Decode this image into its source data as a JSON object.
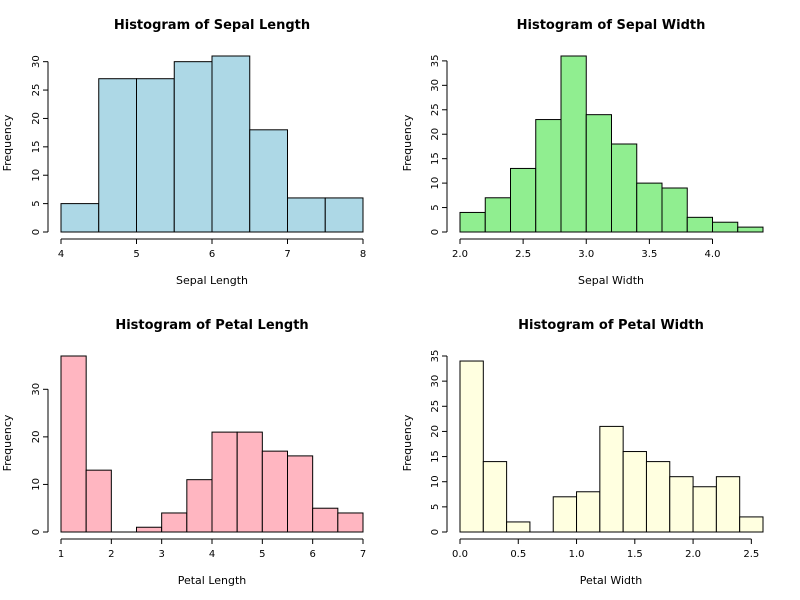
{
  "chart_data": [
    {
      "type": "bar",
      "title": "Histogram of Sepal Length",
      "xlabel": "Sepal Length",
      "ylabel": "Frequency",
      "color": "#add8e6",
      "bin_edges": [
        4.0,
        4.5,
        5.0,
        5.5,
        6.0,
        6.5,
        7.0,
        7.5,
        8.0
      ],
      "values": [
        5,
        27,
        27,
        30,
        31,
        18,
        6,
        6
      ],
      "xlim": [
        4,
        8
      ],
      "ylim": [
        0,
        31
      ],
      "xticks": [
        "4",
        "5",
        "6",
        "7",
        "8"
      ],
      "yticks": [
        "0",
        "5",
        "10",
        "15",
        "20",
        "25",
        "30"
      ]
    },
    {
      "type": "bar",
      "title": "Histogram of Sepal Width",
      "xlabel": "Sepal Width",
      "ylabel": "Frequency",
      "color": "#90ee90",
      "bin_edges": [
        2.0,
        2.2,
        2.4,
        2.6,
        2.8,
        3.0,
        3.2,
        3.4,
        3.6,
        3.8,
        4.0,
        4.2,
        4.4
      ],
      "values": [
        4,
        7,
        13,
        23,
        36,
        24,
        18,
        10,
        9,
        3,
        2,
        1
      ],
      "xlim": [
        2.0,
        4.4
      ],
      "ylim": [
        0,
        36
      ],
      "xticks": [
        "2.0",
        "2.5",
        "3.0",
        "3.5",
        "4.0"
      ],
      "yticks": [
        "0",
        "5",
        "10",
        "15",
        "20",
        "25",
        "30",
        "35"
      ]
    },
    {
      "type": "bar",
      "title": "Histogram of Petal Length",
      "xlabel": "Petal Length",
      "ylabel": "Frequency",
      "color": "#ffb6c1",
      "bin_edges": [
        1.0,
        1.5,
        2.0,
        2.5,
        3.0,
        3.5,
        4.0,
        4.5,
        5.0,
        5.5,
        6.0,
        6.5,
        7.0
      ],
      "values": [
        37,
        13,
        0,
        1,
        4,
        11,
        21,
        21,
        17,
        16,
        5,
        4
      ],
      "xlim": [
        1,
        7
      ],
      "ylim": [
        0,
        37
      ],
      "xticks": [
        "1",
        "2",
        "3",
        "4",
        "5",
        "6",
        "7"
      ],
      "yticks": [
        "0",
        "10",
        "20",
        "30"
      ]
    },
    {
      "type": "bar",
      "title": "Histogram of Petal Width",
      "xlabel": "Petal Width",
      "ylabel": "Frequency",
      "color": "#ffffe0",
      "bin_edges": [
        0.0,
        0.2,
        0.4,
        0.6,
        0.8,
        1.0,
        1.2,
        1.4,
        1.6,
        1.8,
        2.0,
        2.2,
        2.4,
        2.6
      ],
      "values": [
        34,
        14,
        2,
        0,
        7,
        8,
        21,
        16,
        14,
        11,
        9,
        11,
        3
      ],
      "xlim": [
        0.0,
        2.6
      ],
      "ylim": [
        0,
        35
      ],
      "xticks": [
        "0.0",
        "0.5",
        "1.0",
        "1.5",
        "2.0",
        "2.5"
      ],
      "yticks": [
        "0",
        "5",
        "10",
        "15",
        "20",
        "25",
        "30",
        "35"
      ]
    }
  ]
}
